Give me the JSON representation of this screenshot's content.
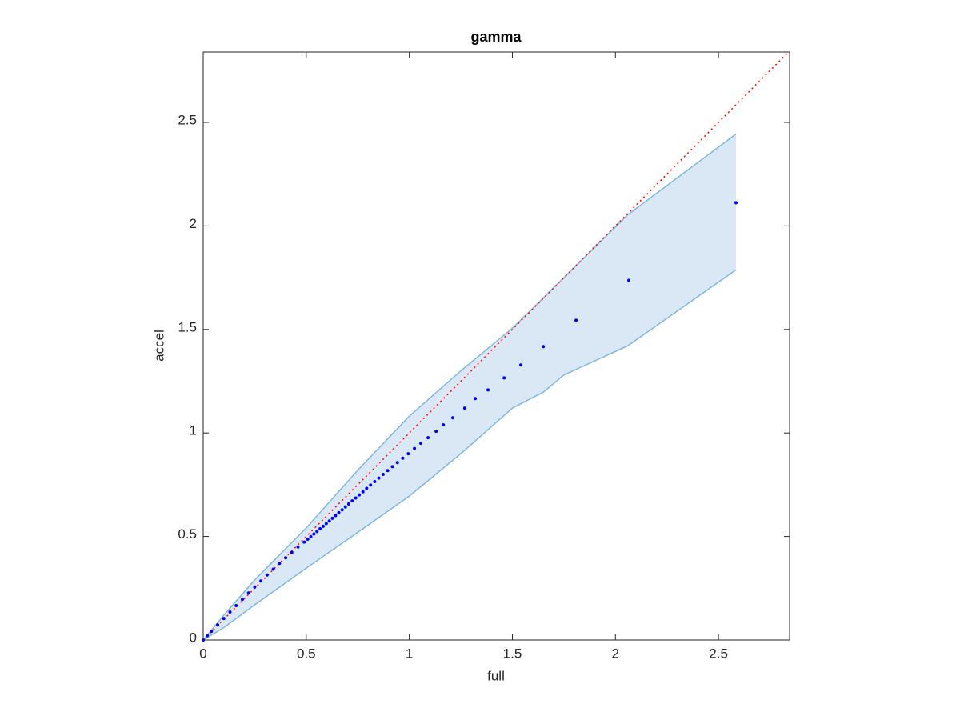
{
  "chart_data": {
    "type": "scatter",
    "title": "gamma",
    "x_label": "full",
    "y_label": "accel",
    "xlim": [
      0,
      2.845
    ],
    "ylim": [
      0,
      2.84
    ],
    "xticks": [
      0,
      0.5,
      1,
      1.5,
      2,
      2.5
    ],
    "yticks": [
      0,
      0.5,
      1,
      1.5,
      2,
      2.5
    ],
    "box": true,
    "band": {
      "color": "#7fb8de",
      "fill": "#d9e8f4",
      "x": [
        0,
        0.1,
        0.25,
        0.5,
        0.75,
        1.0,
        1.25,
        1.5,
        1.65,
        1.75,
        2.06,
        2.585
      ],
      "upper": [
        0,
        0.12,
        0.29,
        0.541,
        0.82,
        1.081,
        1.3,
        1.506,
        1.652,
        1.75,
        2.054,
        2.444
      ],
      "lower": [
        0,
        0.06,
        0.17,
        0.347,
        0.52,
        0.695,
        0.9,
        1.12,
        1.197,
        1.28,
        1.421,
        1.788
      ]
    },
    "reference_line": {
      "color": "#ff0000",
      "style": "dotted",
      "x": [
        0,
        2.84
      ],
      "values": [
        0,
        2.84
      ]
    },
    "points": {
      "color": "#0000ff",
      "x": [
        0.0,
        0.02,
        0.04,
        0.07,
        0.1,
        0.13,
        0.16,
        0.19,
        0.22,
        0.25,
        0.28,
        0.31,
        0.34,
        0.37,
        0.4,
        0.43,
        0.46,
        0.49,
        0.507,
        0.522,
        0.537,
        0.552,
        0.567,
        0.582,
        0.597,
        0.612,
        0.627,
        0.642,
        0.658,
        0.674,
        0.69,
        0.706,
        0.723,
        0.74,
        0.757,
        0.775,
        0.793,
        0.812,
        0.832,
        0.852,
        0.873,
        0.895,
        0.918,
        0.942,
        0.968,
        0.995,
        1.025,
        1.056,
        1.091,
        1.13,
        1.165,
        1.211,
        1.269,
        1.32,
        1.382,
        1.46,
        1.541,
        1.65,
        1.809,
        2.065,
        2.585
      ],
      "values": [
        0.0,
        0.021,
        0.042,
        0.073,
        0.104,
        0.135,
        0.166,
        0.196,
        0.227,
        0.256,
        0.285,
        0.314,
        0.342,
        0.37,
        0.397,
        0.423,
        0.449,
        0.473,
        0.487,
        0.499,
        0.512,
        0.524,
        0.537,
        0.549,
        0.562,
        0.575,
        0.588,
        0.601,
        0.615,
        0.629,
        0.643,
        0.657,
        0.672,
        0.686,
        0.701,
        0.716,
        0.732,
        0.748,
        0.765,
        0.782,
        0.8,
        0.818,
        0.837,
        0.857,
        0.878,
        0.9,
        0.925,
        0.95,
        0.977,
        1.008,
        1.039,
        1.073,
        1.12,
        1.166,
        1.208,
        1.266,
        1.328,
        1.417,
        1.544,
        1.737,
        2.112
      ]
    }
  }
}
